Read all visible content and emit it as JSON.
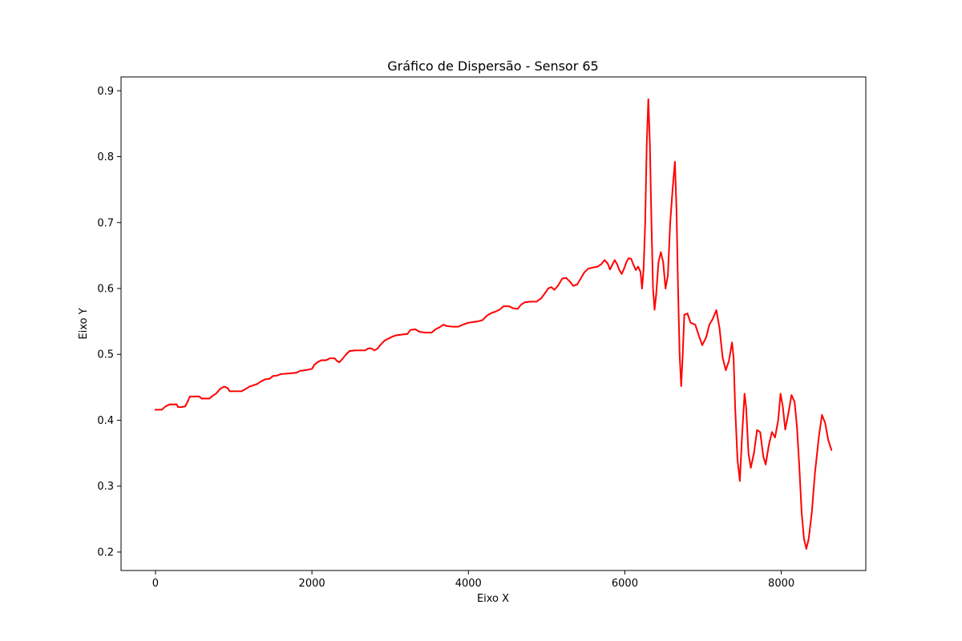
{
  "chart_data": {
    "type": "scatter",
    "title": "Gráfico de Dispersão - Sensor 65",
    "xlabel": "Eixo X",
    "ylabel": "Eixo Y",
    "xlim": [
      -440,
      9080
    ],
    "ylim": [
      0.172,
      0.921
    ],
    "xticks": [
      0,
      2000,
      4000,
      6000,
      8000
    ],
    "yticks": [
      0.2,
      0.3,
      0.4,
      0.5,
      0.6,
      0.7,
      0.8,
      0.9
    ],
    "xtick_labels": [
      "0",
      "2000",
      "4000",
      "6000",
      "8000"
    ],
    "ytick_labels": [
      "0.2",
      "0.3",
      "0.4",
      "0.5",
      "0.6",
      "0.7",
      "0.8",
      "0.9"
    ],
    "grid": false,
    "marker_color": "#ff0000",
    "series": [
      {
        "points": [
          [
            0,
            0.416
          ],
          [
            80,
            0.416
          ],
          [
            130,
            0.421
          ],
          [
            180,
            0.424
          ],
          [
            230,
            0.424
          ],
          [
            270,
            0.424
          ],
          [
            290,
            0.42
          ],
          [
            330,
            0.42
          ],
          [
            380,
            0.421
          ],
          [
            410,
            0.428
          ],
          [
            440,
            0.436
          ],
          [
            500,
            0.436
          ],
          [
            560,
            0.436
          ],
          [
            590,
            0.433
          ],
          [
            640,
            0.433
          ],
          [
            690,
            0.433
          ],
          [
            730,
            0.437
          ],
          [
            780,
            0.441
          ],
          [
            830,
            0.448
          ],
          [
            880,
            0.451
          ],
          [
            920,
            0.449
          ],
          [
            950,
            0.444
          ],
          [
            1000,
            0.444
          ],
          [
            1060,
            0.444
          ],
          [
            1100,
            0.444
          ],
          [
            1160,
            0.448
          ],
          [
            1200,
            0.451
          ],
          [
            1250,
            0.453
          ],
          [
            1300,
            0.455
          ],
          [
            1350,
            0.459
          ],
          [
            1400,
            0.462
          ],
          [
            1460,
            0.463
          ],
          [
            1500,
            0.467
          ],
          [
            1560,
            0.468
          ],
          [
            1600,
            0.47
          ],
          [
            1700,
            0.471
          ],
          [
            1800,
            0.472
          ],
          [
            1850,
            0.475
          ],
          [
            1920,
            0.476
          ],
          [
            2000,
            0.478
          ],
          [
            2030,
            0.484
          ],
          [
            2070,
            0.488
          ],
          [
            2120,
            0.491
          ],
          [
            2180,
            0.491
          ],
          [
            2230,
            0.494
          ],
          [
            2290,
            0.494
          ],
          [
            2320,
            0.49
          ],
          [
            2350,
            0.488
          ],
          [
            2390,
            0.493
          ],
          [
            2430,
            0.499
          ],
          [
            2480,
            0.505
          ],
          [
            2550,
            0.506
          ],
          [
            2620,
            0.506
          ],
          [
            2680,
            0.506
          ],
          [
            2720,
            0.509
          ],
          [
            2760,
            0.509
          ],
          [
            2800,
            0.506
          ],
          [
            2840,
            0.509
          ],
          [
            2880,
            0.515
          ],
          [
            2930,
            0.521
          ],
          [
            2980,
            0.524
          ],
          [
            3030,
            0.527
          ],
          [
            3080,
            0.529
          ],
          [
            3150,
            0.53
          ],
          [
            3220,
            0.531
          ],
          [
            3260,
            0.537
          ],
          [
            3320,
            0.538
          ],
          [
            3380,
            0.534
          ],
          [
            3450,
            0.533
          ],
          [
            3530,
            0.533
          ],
          [
            3580,
            0.538
          ],
          [
            3630,
            0.541
          ],
          [
            3680,
            0.545
          ],
          [
            3720,
            0.543
          ],
          [
            3800,
            0.542
          ],
          [
            3870,
            0.542
          ],
          [
            3930,
            0.545
          ],
          [
            4000,
            0.548
          ],
          [
            4060,
            0.549
          ],
          [
            4120,
            0.55
          ],
          [
            4180,
            0.552
          ],
          [
            4240,
            0.559
          ],
          [
            4300,
            0.563
          ],
          [
            4350,
            0.565
          ],
          [
            4400,
            0.568
          ],
          [
            4450,
            0.573
          ],
          [
            4520,
            0.573
          ],
          [
            4570,
            0.57
          ],
          [
            4630,
            0.569
          ],
          [
            4670,
            0.575
          ],
          [
            4720,
            0.579
          ],
          [
            4790,
            0.58
          ],
          [
            4870,
            0.58
          ],
          [
            4930,
            0.585
          ],
          [
            4980,
            0.593
          ],
          [
            5020,
            0.6
          ],
          [
            5060,
            0.602
          ],
          [
            5100,
            0.598
          ],
          [
            5150,
            0.605
          ],
          [
            5200,
            0.615
          ],
          [
            5250,
            0.616
          ],
          [
            5300,
            0.61
          ],
          [
            5340,
            0.604
          ],
          [
            5390,
            0.606
          ],
          [
            5440,
            0.616
          ],
          [
            5480,
            0.624
          ],
          [
            5530,
            0.63
          ],
          [
            5600,
            0.632
          ],
          [
            5650,
            0.633
          ],
          [
            5700,
            0.637
          ],
          [
            5740,
            0.643
          ],
          [
            5780,
            0.638
          ],
          [
            5810,
            0.629
          ],
          [
            5840,
            0.636
          ],
          [
            5870,
            0.643
          ],
          [
            5900,
            0.637
          ],
          [
            5930,
            0.628
          ],
          [
            5960,
            0.622
          ],
          [
            5990,
            0.63
          ],
          [
            6020,
            0.64
          ],
          [
            6050,
            0.646
          ],
          [
            6080,
            0.645
          ],
          [
            6110,
            0.636
          ],
          [
            6140,
            0.628
          ],
          [
            6170,
            0.633
          ],
          [
            6200,
            0.625
          ],
          [
            6220,
            0.6
          ],
          [
            6240,
            0.63
          ],
          [
            6260,
            0.7
          ],
          [
            6280,
            0.82
          ],
          [
            6300,
            0.887
          ],
          [
            6320,
            0.82
          ],
          [
            6340,
            0.7
          ],
          [
            6360,
            0.6
          ],
          [
            6380,
            0.568
          ],
          [
            6400,
            0.59
          ],
          [
            6430,
            0.64
          ],
          [
            6460,
            0.655
          ],
          [
            6490,
            0.64
          ],
          [
            6520,
            0.6
          ],
          [
            6550,
            0.62
          ],
          [
            6580,
            0.7
          ],
          [
            6610,
            0.75
          ],
          [
            6640,
            0.792
          ],
          [
            6660,
            0.72
          ],
          [
            6680,
            0.6
          ],
          [
            6700,
            0.5
          ],
          [
            6720,
            0.452
          ],
          [
            6740,
            0.5
          ],
          [
            6760,
            0.56
          ],
          [
            6800,
            0.562
          ],
          [
            6840,
            0.548
          ],
          [
            6900,
            0.545
          ],
          [
            6950,
            0.527
          ],
          [
            6990,
            0.514
          ],
          [
            7040,
            0.526
          ],
          [
            7080,
            0.545
          ],
          [
            7120,
            0.553
          ],
          [
            7170,
            0.567
          ],
          [
            7210,
            0.54
          ],
          [
            7250,
            0.495
          ],
          [
            7290,
            0.476
          ],
          [
            7330,
            0.49
          ],
          [
            7370,
            0.518
          ],
          [
            7390,
            0.495
          ],
          [
            7410,
            0.42
          ],
          [
            7440,
            0.34
          ],
          [
            7470,
            0.308
          ],
          [
            7500,
            0.38
          ],
          [
            7530,
            0.44
          ],
          [
            7550,
            0.42
          ],
          [
            7580,
            0.35
          ],
          [
            7610,
            0.328
          ],
          [
            7650,
            0.35
          ],
          [
            7690,
            0.385
          ],
          [
            7730,
            0.382
          ],
          [
            7770,
            0.345
          ],
          [
            7800,
            0.333
          ],
          [
            7840,
            0.362
          ],
          [
            7880,
            0.382
          ],
          [
            7920,
            0.374
          ],
          [
            7960,
            0.4
          ],
          [
            7990,
            0.44
          ],
          [
            8020,
            0.42
          ],
          [
            8050,
            0.386
          ],
          [
            8090,
            0.41
          ],
          [
            8130,
            0.438
          ],
          [
            8170,
            0.428
          ],
          [
            8200,
            0.39
          ],
          [
            8230,
            0.33
          ],
          [
            8260,
            0.26
          ],
          [
            8290,
            0.22
          ],
          [
            8320,
            0.205
          ],
          [
            8350,
            0.22
          ],
          [
            8390,
            0.26
          ],
          [
            8430,
            0.32
          ],
          [
            8480,
            0.375
          ],
          [
            8520,
            0.408
          ],
          [
            8560,
            0.396
          ],
          [
            8600,
            0.37
          ],
          [
            8640,
            0.355
          ]
        ]
      }
    ]
  }
}
